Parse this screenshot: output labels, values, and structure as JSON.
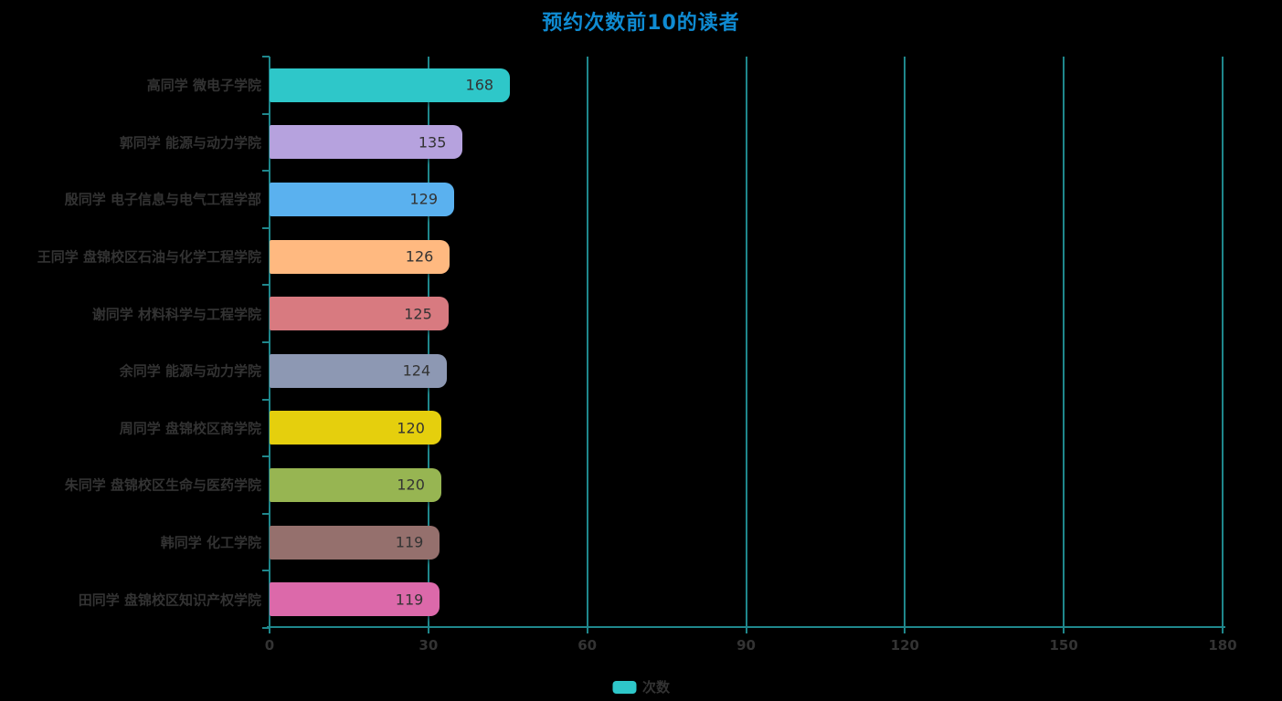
{
  "title": "预约次数前10的读者",
  "legend": {
    "label": "次数",
    "color": "#2ec7c9"
  },
  "colors": {
    "background": "#000000",
    "axis": "#1f878c",
    "title": "#0f8bd2",
    "text": "#333333"
  },
  "chart_data": {
    "type": "bar",
    "orientation": "horizontal",
    "title": "预约次数前10的读者",
    "categories": [
      "高同学 微电子学院",
      "郭同学 能源与动力学院",
      "殷同学 电子信息与电气工程学部",
      "王同学 盘锦校区石油与化学工程学院",
      "谢同学 材料科学与工程学院",
      "余同学 能源与动力学院",
      "周同学 盘锦校区商学院",
      "朱同学 盘锦校区生命与医药学院",
      "韩同学 化工学院",
      "田同学 盘锦校区知识产权学院"
    ],
    "series": [
      {
        "name": "次数",
        "values": [
          168,
          135,
          129,
          126,
          125,
          124,
          120,
          120,
          119,
          119
        ]
      }
    ],
    "bar_colors": [
      "#2ec7c9",
      "#b6a2de",
      "#5ab1ef",
      "#ffb980",
      "#d87a80",
      "#8d98b3",
      "#e5cf0d",
      "#97b552",
      "#95706d",
      "#dc69aa"
    ],
    "xlabel": "",
    "ylabel": "",
    "xlim": [
      0,
      180
    ],
    "x_ticks": [
      0,
      30,
      60,
      90,
      120,
      150,
      180
    ],
    "grid": true,
    "legend_position": "bottom",
    "bar_pixel_scale": 1.566
  }
}
